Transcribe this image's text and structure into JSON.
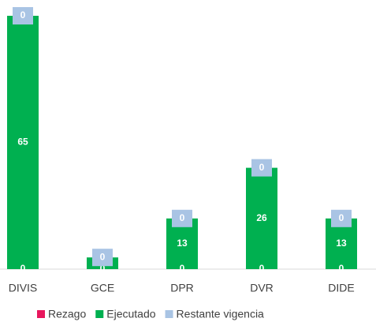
{
  "chart_data": {
    "type": "bar",
    "stacked": true,
    "categories": [
      "DIVIS",
      "GCE",
      "DPR",
      "DVR",
      "DIDE"
    ],
    "series": [
      {
        "name": "Rezago",
        "color": "#e8175d",
        "values": [
          0,
          0,
          0,
          0,
          0
        ]
      },
      {
        "name": "Ejecutado",
        "color": "#00b050",
        "values": [
          65,
          3,
          13,
          26,
          13
        ]
      },
      {
        "name": "Restante vigencia",
        "color": "#a9c4e4",
        "values": [
          0,
          0,
          0,
          0,
          0
        ]
      }
    ],
    "ylim": [
      0,
      65
    ],
    "legend": "bottom"
  }
}
